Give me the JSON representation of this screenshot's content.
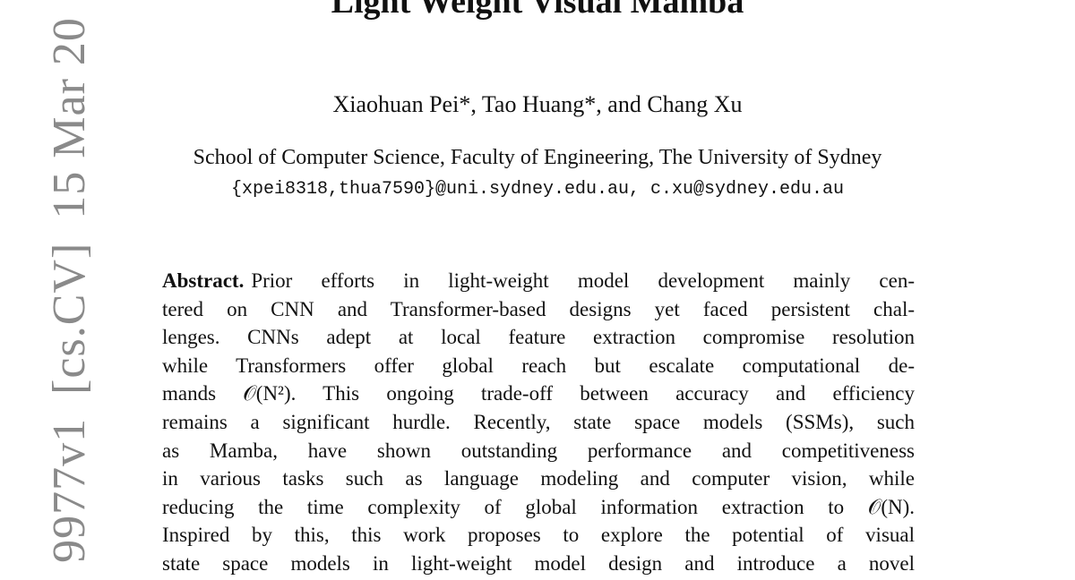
{
  "arxiv_stamp": {
    "id": "9977v1",
    "category": "[cs.CV]",
    "date": "15 Mar 20"
  },
  "paper": {
    "title": "Light Weight Visual Mamba",
    "authors": "Xiaohuan Pei*, Tao Huang*, and Chang Xu",
    "affiliation": "School of Computer Science, Faculty of Engineering, The University of Sydney",
    "emails": "{xpei8318,thua7590}@uni.sydney.edu.au, c.xu@sydney.edu.au"
  },
  "abstract": {
    "label": "Abstract.",
    "lines": [
      "Prior efforts in light-weight model development mainly cen-",
      "tered on CNN and Transformer-based designs yet faced persistent chal-",
      "lenges. CNNs adept at local feature extraction compromise resolution",
      "while Transformers offer global reach but escalate computational de-",
      "mands 𝒪(N²). This ongoing trade-off between accuracy and efficiency",
      "remains a significant hurdle. Recently, state space models (SSMs), such",
      "as Mamba, have shown outstanding performance and competitiveness",
      "in various tasks such as language modeling and computer vision, while",
      "reducing the time complexity of global information extraction to 𝒪(N).",
      "Inspired by this, this work proposes to explore the potential of visual",
      "state space models in light-weight model design and introduce a novel"
    ]
  }
}
